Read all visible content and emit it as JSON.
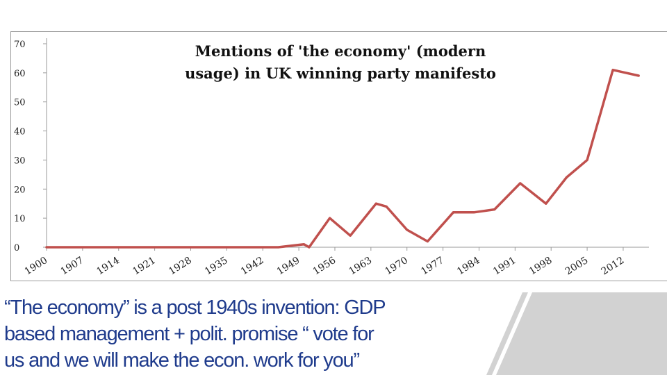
{
  "chart_data": {
    "type": "line",
    "title": [
      "Mentions of 'the economy' (modern",
      "usage) in UK winning party manifesto"
    ],
    "xlabel": "",
    "ylabel": "",
    "ylim": [
      0,
      70
    ],
    "xlim": [
      1900,
      2017
    ],
    "yticks": [
      "0",
      "10",
      "20",
      "30",
      "40",
      "50",
      "60",
      "70"
    ],
    "xticks": [
      "1900",
      "1907",
      "1914",
      "1921",
      "1928",
      "1935",
      "1942",
      "1949",
      "1956",
      "1963",
      "1970",
      "1977",
      "1984",
      "1991",
      "1998",
      "2005",
      "2012"
    ],
    "series": [
      {
        "color": "#c0504d",
        "x": [
          1900,
          1906,
          1910,
          1918,
          1922,
          1923,
          1924,
          1929,
          1931,
          1935,
          1945,
          1950,
          1951,
          1955,
          1959,
          1964,
          1966,
          1970,
          1974,
          1979,
          1983,
          1987,
          1992,
          1997,
          2001,
          2005,
          2010,
          2015
        ],
        "y": [
          0,
          0,
          0,
          0,
          0,
          0,
          0,
          0,
          0,
          0,
          0,
          1,
          0,
          10,
          4,
          15,
          14,
          6,
          2,
          12,
          12,
          13,
          22,
          15,
          24,
          30,
          61,
          59
        ]
      }
    ],
    "grid": false,
    "legend": "none"
  },
  "colors": {
    "line": "#c0504d",
    "caption_text": "#1f3b8c",
    "caption_band": "#d2d2d2",
    "caption_panel": "#ffffff"
  },
  "caption": {
    "lines": [
      "“The economy” is a post 1940s invention: GDP",
      "based management + polit. promise “ vote for",
      "us and we will make the econ. work for you”"
    ]
  }
}
